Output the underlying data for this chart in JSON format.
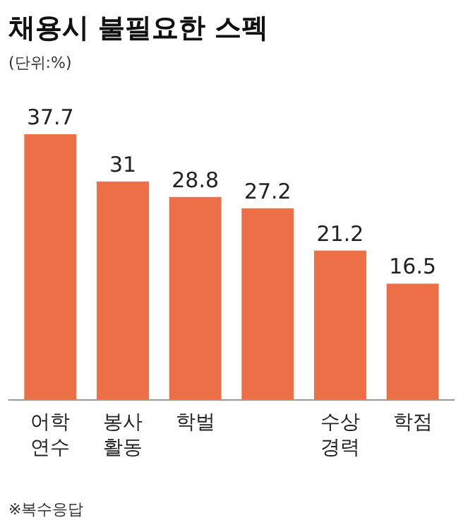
{
  "chart_data": {
    "type": "bar",
    "title": "채용시 불필요한 스펙",
    "subtitle": "(단위:%)",
    "categories": [
      "어학\n연수",
      "봉사\n활동",
      "학벌",
      null,
      "수상\n경력",
      "학점"
    ],
    "values": [
      37.7,
      31,
      28.8,
      27.2,
      21.2,
      16.5
    ],
    "color": "#ec6f48",
    "data_labels": true,
    "annotations": [
      "※복수응답"
    ]
  }
}
